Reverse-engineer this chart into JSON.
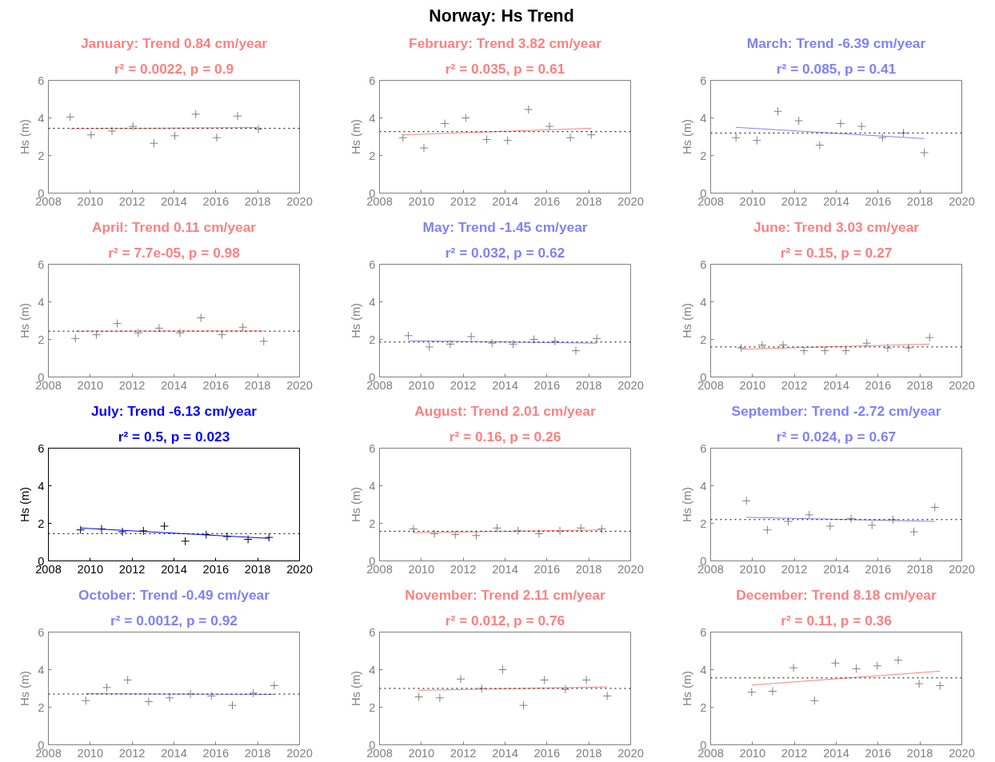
{
  "chart_data": [
    {
      "type": "scatter",
      "title": "January: Trend 0.84 cm/year",
      "subtitle": "r² = 0.0022, p = 0.9",
      "ylabel": "Hs (m)",
      "annotations": [
        "Norway: Hs Trend"
      ],
      "xlim": [
        2008,
        2020
      ],
      "xticks": [
        2008,
        2010,
        2012,
        2014,
        2016,
        2018,
        2020
      ],
      "ylim": [
        0,
        6
      ],
      "yticks": [
        0,
        2,
        4,
        6
      ],
      "grid": false,
      "series": [
        {
          "type": "scatter",
          "marker": "cross",
          "color": "#808080",
          "x": [
            2009.04,
            2010.04,
            2011.04,
            2012.04,
            2013.04,
            2014.04,
            2015.04,
            2016.04,
            2017.04,
            2018.04
          ],
          "values": [
            4.05,
            3.1,
            3.3,
            3.55,
            2.65,
            3.05,
            4.2,
            2.95,
            4.1,
            3.4
          ]
        },
        {
          "type": "line",
          "color": "#ff8080",
          "x": [
            2009.04,
            2018.04
          ],
          "values": [
            3.42,
            3.49
          ]
        }
      ],
      "ref_lines": [
        {
          "axis": "y",
          "value": 3.45,
          "color": "#000000",
          "line_style": "dotted"
        }
      ]
    },
    {
      "type": "scatter",
      "title": "February: Trend 3.82 cm/year",
      "subtitle": "r² = 0.035, p = 0.61",
      "ylabel": "Hs (m)",
      "xlim": [
        2008,
        2020
      ],
      "xticks": [
        2008,
        2010,
        2012,
        2014,
        2016,
        2018,
        2020
      ],
      "ylim": [
        0,
        6
      ],
      "yticks": [
        0,
        2,
        4,
        6
      ],
      "grid": false,
      "series": [
        {
          "type": "scatter",
          "marker": "cross",
          "color": "#808080",
          "x": [
            2009.12,
            2010.12,
            2011.12,
            2012.12,
            2013.12,
            2014.12,
            2015.12,
            2016.12,
            2017.12,
            2018.12
          ],
          "values": [
            2.95,
            2.4,
            3.7,
            4.0,
            2.85,
            2.8,
            4.45,
            3.55,
            2.95,
            3.1
          ]
        },
        {
          "type": "line",
          "color": "#ff8080",
          "x": [
            2009.12,
            2018.12
          ],
          "values": [
            3.1,
            3.45
          ]
        }
      ],
      "ref_lines": [
        {
          "axis": "y",
          "value": 3.27,
          "color": "#000000",
          "line_style": "dotted"
        }
      ]
    },
    {
      "type": "scatter",
      "title": "March: Trend -6.39 cm/year",
      "subtitle": "r² = 0.085, p = 0.41",
      "ylabel": "Hs (m)",
      "xlim": [
        2008,
        2020
      ],
      "xticks": [
        2008,
        2010,
        2012,
        2014,
        2016,
        2018,
        2020
      ],
      "ylim": [
        0,
        6
      ],
      "yticks": [
        0,
        2,
        4,
        6
      ],
      "grid": false,
      "series": [
        {
          "type": "scatter",
          "marker": "cross",
          "color": "#808080",
          "x": [
            2009.21,
            2010.21,
            2011.21,
            2012.21,
            2013.21,
            2014.21,
            2015.21,
            2016.21,
            2017.21,
            2018.21
          ],
          "values": [
            2.95,
            2.8,
            4.35,
            3.85,
            2.55,
            3.7,
            3.55,
            2.95,
            3.2,
            2.15
          ]
        },
        {
          "type": "line",
          "color": "#8080ff",
          "x": [
            2009.21,
            2018.21
          ],
          "values": [
            3.5,
            2.9
          ]
        }
      ],
      "ref_lines": [
        {
          "axis": "y",
          "value": 3.2,
          "color": "#000000",
          "line_style": "dotted"
        }
      ]
    },
    {
      "type": "scatter",
      "title": "April: Trend 0.11 cm/year",
      "subtitle": "r² = 7.7e-05, p = 0.98",
      "ylabel": "Hs (m)",
      "xlim": [
        2008,
        2020
      ],
      "xticks": [
        2008,
        2010,
        2012,
        2014,
        2016,
        2018,
        2020
      ],
      "ylim": [
        0,
        6
      ],
      "yticks": [
        0,
        2,
        4,
        6
      ],
      "grid": false,
      "series": [
        {
          "type": "scatter",
          "marker": "cross",
          "color": "#808080",
          "x": [
            2009.29,
            2010.29,
            2011.29,
            2012.29,
            2013.29,
            2014.29,
            2015.29,
            2016.29,
            2017.29,
            2018.29
          ],
          "values": [
            2.05,
            2.25,
            2.85,
            2.35,
            2.6,
            2.35,
            3.15,
            2.25,
            2.65,
            1.9
          ]
        },
        {
          "type": "line",
          "color": "#ff8080",
          "x": [
            2009.29,
            2018.29
          ],
          "values": [
            2.44,
            2.45
          ]
        }
      ],
      "ref_lines": [
        {
          "axis": "y",
          "value": 2.44,
          "color": "#000000",
          "line_style": "dotted"
        }
      ]
    },
    {
      "type": "scatter",
      "title": "May: Trend -1.45 cm/year",
      "subtitle": "r² = 0.032, p = 0.62",
      "ylabel": "Hs (m)",
      "xlim": [
        2008,
        2020
      ],
      "xticks": [
        2008,
        2010,
        2012,
        2014,
        2016,
        2018,
        2020
      ],
      "ylim": [
        0,
        6
      ],
      "yticks": [
        0,
        2,
        4,
        6
      ],
      "grid": false,
      "series": [
        {
          "type": "scatter",
          "marker": "cross",
          "color": "#808080",
          "x": [
            2009.38,
            2010.38,
            2011.38,
            2012.38,
            2013.38,
            2014.38,
            2015.38,
            2016.38,
            2017.38,
            2018.38
          ],
          "values": [
            2.2,
            1.6,
            1.75,
            2.15,
            1.8,
            1.75,
            2.0,
            1.9,
            1.4,
            2.05
          ]
        },
        {
          "type": "line",
          "color": "#8080ff",
          "x": [
            2009.38,
            2018.38
          ],
          "values": [
            1.93,
            1.8
          ]
        }
      ],
      "ref_lines": [
        {
          "axis": "y",
          "value": 1.86,
          "color": "#000000",
          "line_style": "dotted"
        }
      ]
    },
    {
      "type": "scatter",
      "title": "June: Trend 3.03 cm/year",
      "subtitle": "r² = 0.15, p = 0.27",
      "ylabel": "Hs (m)",
      "xlim": [
        2008,
        2020
      ],
      "xticks": [
        2008,
        2010,
        2012,
        2014,
        2016,
        2018,
        2020
      ],
      "ylim": [
        0,
        6
      ],
      "yticks": [
        0,
        2,
        4,
        6
      ],
      "grid": false,
      "series": [
        {
          "type": "scatter",
          "marker": "cross",
          "color": "#808080",
          "x": [
            2009.46,
            2010.46,
            2011.46,
            2012.46,
            2013.46,
            2014.46,
            2015.46,
            2016.46,
            2017.46,
            2018.46
          ],
          "values": [
            1.55,
            1.7,
            1.7,
            1.4,
            1.4,
            1.4,
            1.8,
            1.55,
            1.55,
            2.1
          ]
        },
        {
          "type": "line",
          "color": "#ff8080",
          "x": [
            2009.46,
            2018.46
          ],
          "values": [
            1.48,
            1.75
          ]
        }
      ],
      "ref_lines": [
        {
          "axis": "y",
          "value": 1.6,
          "color": "#000000",
          "line_style": "dotted"
        }
      ]
    },
    {
      "type": "scatter",
      "title": "July: Trend -6.13 cm/year",
      "subtitle": "r² = 0.5, p = 0.023",
      "ylabel": "Hs (m)",
      "xlim": [
        2008,
        2020
      ],
      "xticks": [
        2008,
        2010,
        2012,
        2014,
        2016,
        2018,
        2020
      ],
      "ylim": [
        0,
        6
      ],
      "yticks": [
        0,
        2,
        4,
        6
      ],
      "grid": false,
      "series": [
        {
          "type": "scatter",
          "marker": "cross",
          "color": "#000000",
          "x": [
            2009.54,
            2010.54,
            2011.54,
            2012.54,
            2013.54,
            2014.54,
            2015.54,
            2016.54,
            2017.54,
            2018.54
          ],
          "values": [
            1.65,
            1.7,
            1.55,
            1.6,
            1.85,
            1.05,
            1.4,
            1.3,
            1.15,
            1.25
          ]
        },
        {
          "type": "line",
          "color": "#0000ff",
          "x": [
            2009.54,
            2018.54
          ],
          "values": [
            1.75,
            1.2
          ]
        }
      ],
      "ref_lines": [
        {
          "axis": "y",
          "value": 1.45,
          "color": "#000000",
          "line_style": "dotted"
        }
      ]
    },
    {
      "type": "scatter",
      "title": "August: Trend 2.01 cm/year",
      "subtitle": "r² = 0.16, p = 0.26",
      "ylabel": "Hs (m)",
      "xlim": [
        2008,
        2020
      ],
      "xticks": [
        2008,
        2010,
        2012,
        2014,
        2016,
        2018,
        2020
      ],
      "ylim": [
        0,
        6
      ],
      "yticks": [
        0,
        2,
        4,
        6
      ],
      "grid": false,
      "series": [
        {
          "type": "scatter",
          "marker": "cross",
          "color": "#808080",
          "x": [
            2009.62,
            2010.62,
            2011.62,
            2012.62,
            2013.62,
            2014.62,
            2015.62,
            2016.62,
            2017.62,
            2018.62
          ],
          "values": [
            1.7,
            1.45,
            1.4,
            1.35,
            1.75,
            1.6,
            1.45,
            1.6,
            1.75,
            1.7
          ]
        },
        {
          "type": "line",
          "color": "#ff8080",
          "x": [
            2009.62,
            2018.62
          ],
          "values": [
            1.5,
            1.65
          ]
        }
      ],
      "ref_lines": [
        {
          "axis": "y",
          "value": 1.58,
          "color": "#000000",
          "line_style": "dotted"
        }
      ]
    },
    {
      "type": "scatter",
      "title": "September: Trend -2.72 cm/year",
      "subtitle": "r² = 0.024, p = 0.67",
      "ylabel": "Hs (m)",
      "xlim": [
        2008,
        2020
      ],
      "xticks": [
        2008,
        2010,
        2012,
        2014,
        2016,
        2018,
        2020
      ],
      "ylim": [
        0,
        6
      ],
      "yticks": [
        0,
        2,
        4,
        6
      ],
      "grid": false,
      "series": [
        {
          "type": "scatter",
          "marker": "cross",
          "color": "#808080",
          "x": [
            2009.71,
            2010.71,
            2011.71,
            2012.71,
            2013.71,
            2014.71,
            2015.71,
            2016.71,
            2017.71,
            2018.71
          ],
          "values": [
            3.2,
            1.65,
            2.1,
            2.45,
            1.85,
            2.25,
            1.9,
            2.2,
            1.55,
            2.85
          ]
        },
        {
          "type": "line",
          "color": "#8080ff",
          "x": [
            2009.71,
            2018.71
          ],
          "values": [
            2.32,
            2.1
          ]
        }
      ],
      "ref_lines": [
        {
          "axis": "y",
          "value": 2.2,
          "color": "#000000",
          "line_style": "dotted"
        }
      ]
    },
    {
      "type": "scatter",
      "title": "October: Trend -0.49 cm/year",
      "subtitle": "r² = 0.0012, p = 0.92",
      "ylabel": "Hs (m)",
      "xlim": [
        2008,
        2020
      ],
      "xticks": [
        2008,
        2010,
        2012,
        2014,
        2016,
        2018,
        2020
      ],
      "ylim": [
        0,
        6
      ],
      "yticks": [
        0,
        2,
        4,
        6
      ],
      "grid": false,
      "series": [
        {
          "type": "scatter",
          "marker": "cross",
          "color": "#808080",
          "x": [
            2009.79,
            2010.79,
            2011.79,
            2012.79,
            2013.79,
            2014.79,
            2015.79,
            2016.79,
            2017.79,
            2018.79
          ],
          "values": [
            2.35,
            3.05,
            3.45,
            2.3,
            2.5,
            2.7,
            2.6,
            2.1,
            2.75,
            3.15
          ]
        },
        {
          "type": "line",
          "color": "#8080ff",
          "x": [
            2009.79,
            2018.79
          ],
          "values": [
            2.72,
            2.68
          ]
        }
      ],
      "ref_lines": [
        {
          "axis": "y",
          "value": 2.7,
          "color": "#000000",
          "line_style": "dotted"
        }
      ]
    },
    {
      "type": "scatter",
      "title": "November: Trend 2.11 cm/year",
      "subtitle": "r² = 0.012, p = 0.76",
      "ylabel": "Hs (m)",
      "xlim": [
        2008,
        2020
      ],
      "xticks": [
        2008,
        2010,
        2012,
        2014,
        2016,
        2018,
        2020
      ],
      "ylim": [
        0,
        6
      ],
      "yticks": [
        0,
        2,
        4,
        6
      ],
      "grid": false,
      "series": [
        {
          "type": "scatter",
          "marker": "cross",
          "color": "#808080",
          "x": [
            2009.88,
            2010.88,
            2011.88,
            2012.88,
            2013.88,
            2014.88,
            2015.88,
            2016.88,
            2017.88,
            2018.88
          ],
          "values": [
            2.55,
            2.5,
            3.5,
            3.0,
            4.0,
            2.1,
            3.45,
            2.95,
            3.45,
            2.6
          ]
        },
        {
          "type": "line",
          "color": "#ff8080",
          "x": [
            2009.88,
            2018.88
          ],
          "values": [
            2.9,
            3.08
          ]
        }
      ],
      "ref_lines": [
        {
          "axis": "y",
          "value": 3.0,
          "color": "#000000",
          "line_style": "dotted"
        }
      ]
    },
    {
      "type": "scatter",
      "title": "December: Trend 8.18 cm/year",
      "subtitle": "r² = 0.11, p = 0.36",
      "ylabel": "Hs (m)",
      "xlim": [
        2008,
        2020
      ],
      "xticks": [
        2008,
        2010,
        2012,
        2014,
        2016,
        2018,
        2020
      ],
      "ylim": [
        0,
        6
      ],
      "yticks": [
        0,
        2,
        4,
        6
      ],
      "grid": false,
      "series": [
        {
          "type": "scatter",
          "marker": "cross",
          "color": "#808080",
          "x": [
            2009.96,
            2010.96,
            2011.96,
            2012.96,
            2013.96,
            2014.96,
            2015.96,
            2016.96,
            2017.96,
            2018.96
          ],
          "values": [
            2.8,
            2.85,
            4.1,
            2.35,
            4.35,
            4.05,
            4.2,
            4.5,
            3.25,
            3.15
          ]
        },
        {
          "type": "line",
          "color": "#ff8080",
          "x": [
            2009.96,
            2018.96
          ],
          "values": [
            3.18,
            3.92
          ]
        }
      ],
      "ref_lines": [
        {
          "axis": "y",
          "value": 3.56,
          "color": "#000000",
          "line_style": "dotted"
        }
      ]
    }
  ]
}
